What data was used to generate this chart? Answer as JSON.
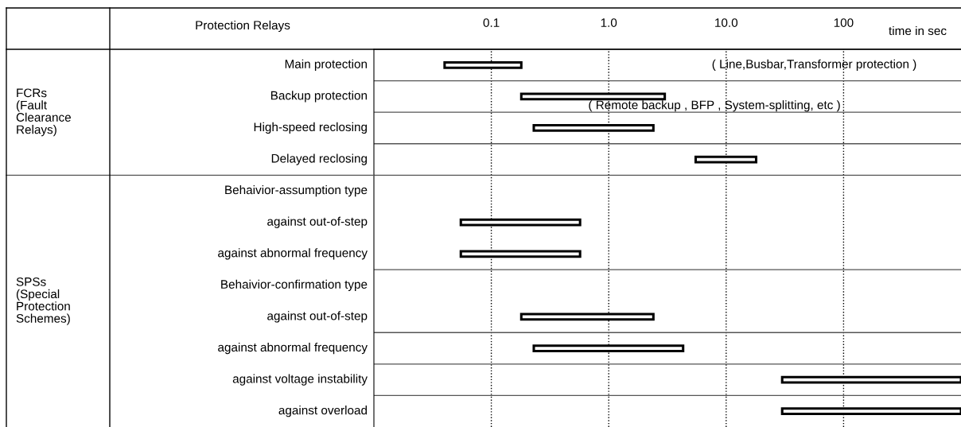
{
  "chart_data": {
    "type": "bar",
    "orientation": "horizontal",
    "log": "x",
    "grid": "x",
    "line_style": "dotted",
    "ylabel": "Protection Relays",
    "xlabel": "time in sec",
    "categories": [
      "Main protection",
      "Backup protection",
      "High-speed reclosing",
      "Delayed reclosing",
      "Behaivior-assumption type",
      "against out-of-step",
      "against abnormal frequency",
      "Behaivior-confirmation type",
      "against out-of-step",
      "against abnormal frequency",
      "against voltage instability",
      "against overload"
    ],
    "base": [
      0.04,
      0.18,
      0.23,
      5.5,
      null,
      0.055,
      0.055,
      null,
      0.18,
      0.23,
      30,
      30
    ],
    "values": [
      0.14,
      2.82,
      2.17,
      12.5,
      null,
      0.515,
      0.515,
      null,
      2.22,
      4.07,
      970,
      970
    ],
    "color": "#000000",
    "xlim": [
      0.01,
      1000
    ],
    "xticks": [
      0.1,
      {
        "value": 1,
        "label": "1.0"
      },
      {
        "value": 10,
        "label": "10.0"
      },
      100
    ],
    "annotations": [
      "( Line,Busbar,Transformer protection )",
      "( Remote backup , BFP , System-splitting, etc )",
      "FCRs\n(Fault\nClearance\nRelays)",
      "SPSs\n(Special\nProtection\nSchemes)"
    ]
  }
}
